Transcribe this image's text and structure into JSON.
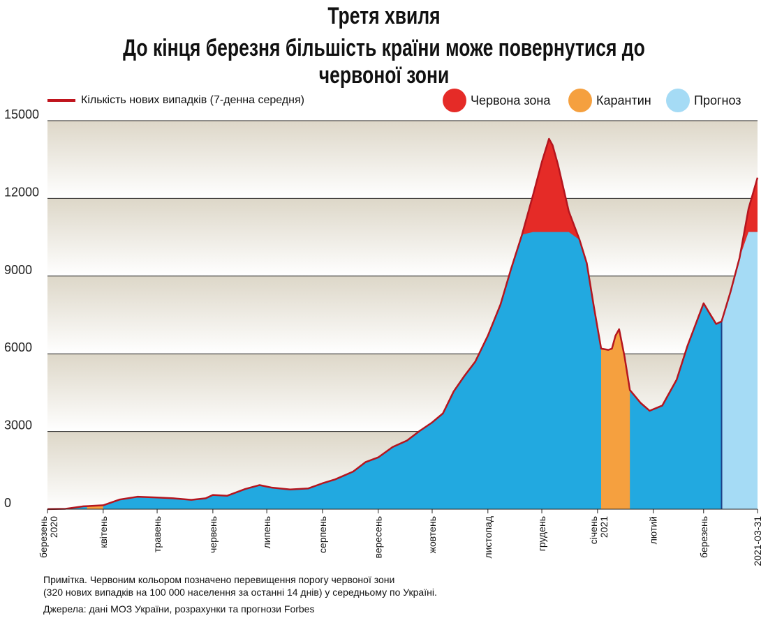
{
  "header": {
    "title": "Третя хвиля",
    "subtitle": "До кінця березня більшість країни може повернутися до червоної зони"
  },
  "legend": {
    "line_label": "Кількість нових випадків (7-денна середня)",
    "red_label": "Червона зона",
    "orange_label": "Карантин",
    "forecast_label": "Прогноз"
  },
  "notes": {
    "line1": "Примітка. Червоним кольором позначено перевищення порогу червоної зони",
    "line2": "(320 нових випадків на 100 000 населення за останні 14 днів) у середньому по Україні.",
    "sources": "Джерела: дані МОЗ України, розрахунки та прогнози Forbes"
  },
  "colors": {
    "line": "#b5151e",
    "base_fill": "#22a9e0",
    "red_zone": "#e52b27",
    "quarantine": "#f5a03f",
    "forecast": "#a5dbf5",
    "grid_band": "#ddd7c8"
  },
  "chart_data": {
    "type": "area",
    "ylim": [
      0,
      15000
    ],
    "yticks": [
      0,
      3000,
      6000,
      9000,
      12000,
      15000
    ],
    "red_zone_threshold": 10700,
    "x_tick_labels": [
      {
        "label": "березень 2020",
        "day": 0
      },
      {
        "label": "квітень",
        "day": 31
      },
      {
        "label": "травень",
        "day": 61
      },
      {
        "label": "червень",
        "day": 92
      },
      {
        "label": "липень",
        "day": 122
      },
      {
        "label": "серпень",
        "day": 153
      },
      {
        "label": "вересень",
        "day": 184
      },
      {
        "label": "жовтень",
        "day": 214
      },
      {
        "label": "листопад",
        "day": 245
      },
      {
        "label": "грудень",
        "day": 275
      },
      {
        "label": "січень 2021",
        "day": 306
      },
      {
        "label": "лютий",
        "day": 337
      },
      {
        "label": "березень",
        "day": 365
      },
      {
        "label": "2021-03-31",
        "day": 395
      }
    ],
    "periods": [
      {
        "name": "Карантин",
        "from_day": 22,
        "to_day": 31
      },
      {
        "name": "Карантин",
        "from_day": 308,
        "to_day": 324
      },
      {
        "name": "Прогноз",
        "from_day": 375,
        "to_day": 395
      }
    ],
    "series": [
      {
        "name": "Кількість нових випадків (7-денна середня)",
        "points": [
          [
            0,
            5
          ],
          [
            10,
            15
          ],
          [
            20,
            110
          ],
          [
            31,
            150
          ],
          [
            40,
            370
          ],
          [
            50,
            480
          ],
          [
            61,
            450
          ],
          [
            70,
            420
          ],
          [
            80,
            360
          ],
          [
            88,
            420
          ],
          [
            92,
            550
          ],
          [
            100,
            520
          ],
          [
            110,
            780
          ],
          [
            118,
            930
          ],
          [
            125,
            830
          ],
          [
            135,
            760
          ],
          [
            145,
            800
          ],
          [
            153,
            1000
          ],
          [
            160,
            1150
          ],
          [
            170,
            1450
          ],
          [
            177,
            1820
          ],
          [
            184,
            2000
          ],
          [
            192,
            2400
          ],
          [
            200,
            2650
          ],
          [
            207,
            3020
          ],
          [
            214,
            3350
          ],
          [
            220,
            3700
          ],
          [
            226,
            4550
          ],
          [
            232,
            5150
          ],
          [
            238,
            5700
          ],
          [
            245,
            6700
          ],
          [
            252,
            7900
          ],
          [
            258,
            9300
          ],
          [
            264,
            10600
          ],
          [
            270,
            12100
          ],
          [
            275,
            13400
          ],
          [
            279,
            14300
          ],
          [
            281,
            14050
          ],
          [
            284,
            13300
          ],
          [
            290,
            11500
          ],
          [
            296,
            10400
          ],
          [
            300,
            9500
          ],
          [
            304,
            7800
          ],
          [
            308,
            6200
          ],
          [
            312,
            6150
          ],
          [
            314,
            6200
          ],
          [
            316,
            6700
          ],
          [
            318,
            6950
          ],
          [
            321,
            5900
          ],
          [
            324,
            4600
          ],
          [
            330,
            4100
          ],
          [
            335,
            3800
          ],
          [
            342,
            4000
          ],
          [
            350,
            5000
          ],
          [
            356,
            6300
          ],
          [
            362,
            7400
          ],
          [
            365,
            7950
          ],
          [
            368,
            7600
          ],
          [
            372,
            7150
          ],
          [
            375,
            7250
          ],
          [
            380,
            8400
          ],
          [
            385,
            9700
          ],
          [
            390,
            11600
          ],
          [
            395,
            12800
          ]
        ]
      }
    ]
  }
}
